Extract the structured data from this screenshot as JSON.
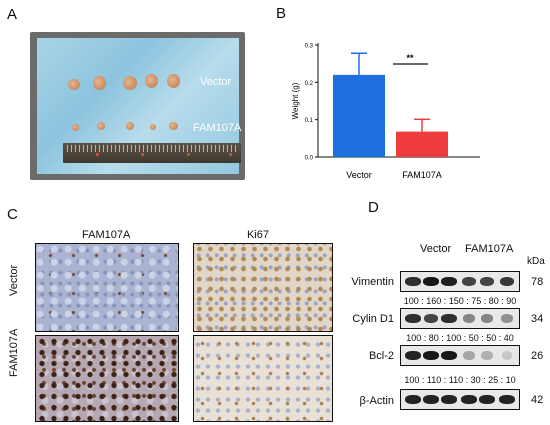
{
  "panels": {
    "a": "A",
    "b": "B",
    "c": "C",
    "d": "D"
  },
  "panel_a": {
    "label_vector": "Vector",
    "label_fam": "FAM107A"
  },
  "chart_data": {
    "type": "bar",
    "categories": [
      "Vector",
      "FAM107A"
    ],
    "values": [
      0.22,
      0.068
    ],
    "errors": [
      0.058,
      0.033
    ],
    "colors": [
      "#1f6fe0",
      "#ef3c3c"
    ],
    "ylabel": "Weight (g)",
    "ylim": [
      0,
      0.3
    ],
    "yticks": [
      "0.0",
      "0.1",
      "0.2",
      "0.3"
    ],
    "significance": "**"
  },
  "panel_c": {
    "col_fam": "FAM107A",
    "col_ki67": "Ki67",
    "row_vector": "Vector",
    "row_fam": "FAM107A"
  },
  "panel_d": {
    "group_vector": "Vector",
    "group_fam": "FAM107A",
    "unit": "kDa",
    "rows": [
      {
        "name": "Vimentin",
        "kda": "78",
        "ratio": "100 : 160 : 150 : 75 : 80 : 90",
        "intensity": [
          0.85,
          0.95,
          0.92,
          0.75,
          0.75,
          0.8
        ]
      },
      {
        "name": "Cylin D1",
        "kda": "34",
        "ratio": "100 : 80 : 100 : 50 : 50 : 40",
        "intensity": [
          0.85,
          0.75,
          0.85,
          0.45,
          0.45,
          0.4
        ]
      },
      {
        "name": "Bcl-2",
        "kda": "26",
        "ratio": "100 : 110 : 110 : 30 : 25 : 10",
        "intensity": [
          0.9,
          0.95,
          0.95,
          0.3,
          0.25,
          0.12
        ]
      },
      {
        "name": "β-Actin",
        "kda": "42",
        "ratio": "",
        "intensity": [
          0.9,
          0.9,
          0.9,
          0.9,
          0.9,
          0.9
        ]
      }
    ]
  }
}
